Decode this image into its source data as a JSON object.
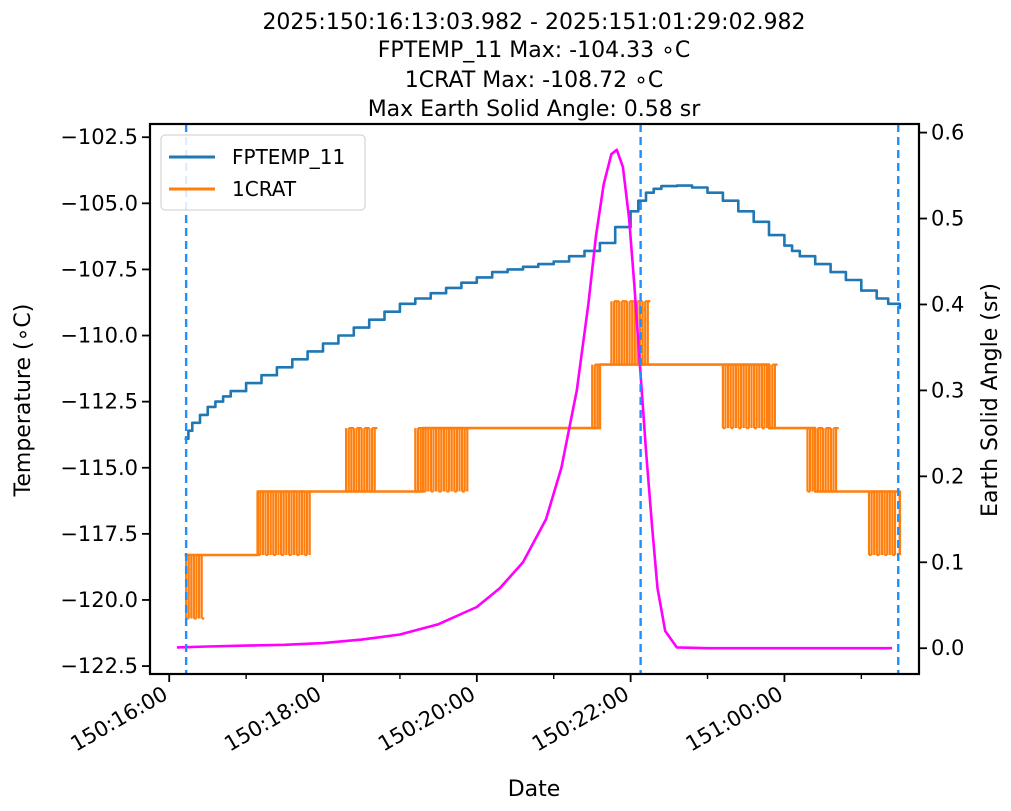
{
  "title_lines": [
    "2025:150:16:13:03.982 - 2025:151:01:29:02.982",
    "FPTEMP_11 Max: -104.33 ∘C",
    "1CRAT Max: -108.72 ∘C",
    "Max Earth Solid Angle: 0.58 sr"
  ],
  "chart_data": {
    "type": "line",
    "xlabel": "Date",
    "ylabel": "Temperature (∘C)",
    "y2label": "Earth Solid Angle (sr)",
    "x_units": "hours since 2025:150:16:00",
    "xlim": [
      -0.25,
      9.75
    ],
    "ylim": [
      -122.8,
      -102.0
    ],
    "y2lim": [
      -0.03,
      0.61
    ],
    "x_ticks": [
      {
        "value": 0,
        "label": "150:16:00"
      },
      {
        "value": 2,
        "label": "150:18:00"
      },
      {
        "value": 4,
        "label": "150:20:00"
      },
      {
        "value": 6,
        "label": "150:22:00"
      },
      {
        "value": 8,
        "label": "151:00:00"
      }
    ],
    "x_minor_ticks": [
      1,
      3,
      5,
      7,
      9
    ],
    "y_ticks": [
      {
        "value": -102.5,
        "label": "−102.5"
      },
      {
        "value": -105.0,
        "label": "−105.0"
      },
      {
        "value": -107.5,
        "label": "−107.5"
      },
      {
        "value": -110.0,
        "label": "−110.0"
      },
      {
        "value": -112.5,
        "label": "−112.5"
      },
      {
        "value": -115.0,
        "label": "−115.0"
      },
      {
        "value": -117.5,
        "label": "−117.5"
      },
      {
        "value": -120.0,
        "label": "−120.0"
      },
      {
        "value": -122.5,
        "label": "−122.5"
      }
    ],
    "y2_ticks": [
      {
        "value": 0.0,
        "label": "0.0"
      },
      {
        "value": 0.1,
        "label": "0.1"
      },
      {
        "value": 0.2,
        "label": "0.2"
      },
      {
        "value": 0.3,
        "label": "0.3"
      },
      {
        "value": 0.4,
        "label": "0.4"
      },
      {
        "value": 0.5,
        "label": "0.5"
      },
      {
        "value": 0.6,
        "label": "0.6"
      }
    ],
    "legend_position": "upper-left",
    "vlines": [
      {
        "x": 0.22,
        "color": "#1e90ff"
      },
      {
        "x": 6.13,
        "color": "#1e90ff"
      },
      {
        "x": 9.48,
        "color": "#1e90ff"
      }
    ],
    "series": [
      {
        "name": "FPTEMP_11",
        "axis": "left",
        "color": "#1f77b4",
        "step": true,
        "x": [
          0.2,
          0.25,
          0.3,
          0.4,
          0.5,
          0.6,
          0.7,
          0.8,
          1.0,
          1.2,
          1.4,
          1.6,
          1.8,
          2.0,
          2.2,
          2.4,
          2.6,
          2.8,
          3.0,
          3.2,
          3.4,
          3.6,
          3.8,
          4.0,
          4.2,
          4.4,
          4.6,
          4.8,
          5.0,
          5.2,
          5.4,
          5.6,
          5.8,
          6.0,
          6.1,
          6.2,
          6.3,
          6.4,
          6.6,
          6.8,
          7.0,
          7.2,
          7.4,
          7.6,
          7.8,
          8.0,
          8.1,
          8.2,
          8.4,
          8.6,
          8.8,
          9.0,
          9.2,
          9.35,
          9.5
        ],
        "y": [
          -113.9,
          -113.6,
          -113.3,
          -113.0,
          -112.7,
          -112.5,
          -112.3,
          -112.1,
          -111.8,
          -111.5,
          -111.2,
          -110.9,
          -110.6,
          -110.3,
          -110.0,
          -109.7,
          -109.4,
          -109.1,
          -108.8,
          -108.6,
          -108.4,
          -108.2,
          -108.0,
          -107.8,
          -107.6,
          -107.5,
          -107.4,
          -107.3,
          -107.2,
          -107.0,
          -106.8,
          -106.5,
          -105.9,
          -105.3,
          -104.9,
          -104.6,
          -104.45,
          -104.35,
          -104.33,
          -104.4,
          -104.6,
          -104.9,
          -105.3,
          -105.7,
          -106.2,
          -106.6,
          -106.8,
          -107.0,
          -107.3,
          -107.6,
          -107.9,
          -108.3,
          -108.6,
          -108.8,
          -109.0
        ]
      },
      {
        "name": "1CRAT",
        "axis": "left",
        "color": "#ff7f0e",
        "step": true,
        "x": [
          0.2,
          0.4,
          1.15,
          1.8,
          2.5,
          3.3,
          5.3,
          5.6,
          6.15,
          6.3,
          7.2,
          7.8,
          8.4,
          9.1,
          9.5
        ],
        "y": [
          -118.3,
          -118.3,
          -115.9,
          -115.9,
          -115.9,
          -113.5,
          -113.5,
          -111.1,
          -111.1,
          -111.1,
          -111.1,
          -113.5,
          -115.9,
          -115.9,
          -118.3
        ],
        "noise_bands": [
          {
            "x": [
              0.22,
              0.45
            ],
            "y": [
              -120.7,
              -118.3
            ]
          },
          {
            "x": [
              1.15,
              1.85
            ],
            "y": [
              -118.3,
              -115.9
            ]
          },
          {
            "x": [
              2.3,
              2.7
            ],
            "y": [
              -115.9,
              -113.5
            ]
          },
          {
            "x": [
              3.2,
              3.9
            ],
            "y": [
              -115.9,
              -113.5
            ]
          },
          {
            "x": [
              5.5,
              5.6
            ],
            "y": [
              -113.5,
              -111.1
            ]
          },
          {
            "x": [
              5.75,
              6.25
            ],
            "y": [
              -111.1,
              -108.7
            ]
          },
          {
            "x": [
              7.2,
              7.9
            ],
            "y": [
              -113.5,
              -111.1
            ]
          },
          {
            "x": [
              8.3,
              8.7
            ],
            "y": [
              -115.9,
              -113.5
            ]
          },
          {
            "x": [
              9.1,
              9.45
            ],
            "y": [
              -118.3,
              -115.9
            ]
          }
        ]
      },
      {
        "name": "Earth Solid Angle",
        "axis": "right",
        "color": "#ff00ff",
        "step": false,
        "x": [
          0.1,
          0.5,
          1.0,
          1.5,
          2.0,
          2.5,
          3.0,
          3.5,
          4.0,
          4.3,
          4.6,
          4.9,
          5.1,
          5.3,
          5.45,
          5.55,
          5.65,
          5.75,
          5.82,
          5.9,
          5.98,
          6.05,
          6.12,
          6.2,
          6.28,
          6.35,
          6.45,
          6.6,
          7.0,
          8.0,
          9.0,
          9.4
        ],
        "y": [
          0.001,
          0.002,
          0.003,
          0.004,
          0.006,
          0.01,
          0.016,
          0.028,
          0.048,
          0.07,
          0.1,
          0.15,
          0.21,
          0.3,
          0.4,
          0.48,
          0.54,
          0.575,
          0.58,
          0.56,
          0.5,
          0.42,
          0.33,
          0.23,
          0.14,
          0.07,
          0.02,
          0.001,
          0.0,
          0.0,
          0.0,
          0.0
        ]
      }
    ]
  }
}
